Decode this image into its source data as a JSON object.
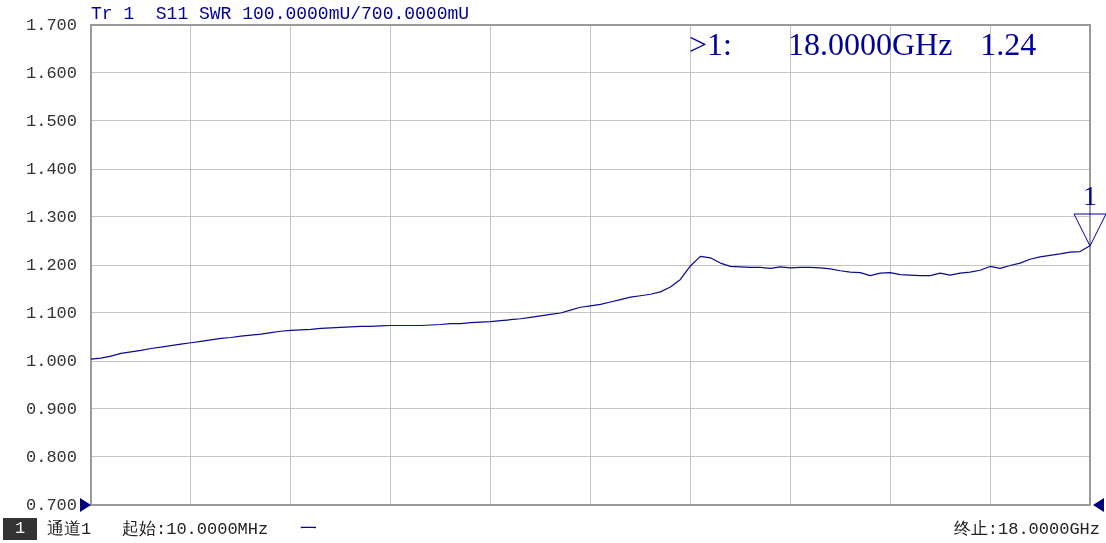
{
  "chart_data": {
    "type": "line",
    "title": "Tr 1  S11 SWR 100.0000mU/700.0000mU",
    "categories": [
      null,
      null,
      null,
      null,
      null,
      null,
      null,
      null,
      null,
      null,
      null,
      null,
      null,
      null,
      null,
      null,
      null,
      null,
      null,
      null,
      null,
      null,
      null,
      null,
      null,
      null,
      null,
      null,
      null,
      null,
      null,
      null,
      null,
      null,
      null,
      null,
      null,
      null,
      null,
      null,
      null,
      null,
      null,
      null,
      null,
      null,
      null,
      null,
      null,
      null,
      null,
      null,
      null,
      null,
      null,
      null,
      null,
      null,
      null,
      null,
      null,
      null,
      null,
      null,
      null,
      null,
      null,
      null,
      null,
      null,
      null,
      null,
      null,
      null,
      null,
      null,
      null,
      null,
      null,
      null,
      null,
      null,
      null,
      null,
      null,
      null,
      null,
      null,
      null,
      null,
      null,
      null,
      null,
      null,
      null,
      null,
      null,
      null,
      null,
      null,
      null
    ],
    "values": [
      1.004,
      1.006,
      1.01,
      1.016,
      1.019,
      1.022,
      1.026,
      1.029,
      1.032,
      1.035,
      1.038,
      1.041,
      1.044,
      1.047,
      1.049,
      1.052,
      1.054,
      1.056,
      1.059,
      1.062,
      1.064,
      1.065,
      1.066,
      1.068,
      1.069,
      1.07,
      1.071,
      1.072,
      1.072,
      1.073,
      1.074,
      1.074,
      1.074,
      1.074,
      1.075,
      1.076,
      1.078,
      1.078,
      1.08,
      1.081,
      1.082,
      1.084,
      1.086,
      1.088,
      1.091,
      1.094,
      1.097,
      1.1,
      1.106,
      1.112,
      1.115,
      1.118,
      1.123,
      1.128,
      1.133,
      1.136,
      1.139,
      1.144,
      1.154,
      1.17,
      1.198,
      1.218,
      1.215,
      1.204,
      1.197,
      1.196,
      1.195,
      1.195,
      1.193,
      1.196,
      1.194,
      1.195,
      1.195,
      1.194,
      1.192,
      1.188,
      1.185,
      1.184,
      1.178,
      1.183,
      1.184,
      1.18,
      1.179,
      1.178,
      1.178,
      1.183,
      1.179,
      1.183,
      1.185,
      1.189,
      1.197,
      1.193,
      1.199,
      1.204,
      1.212,
      1.217,
      1.22,
      1.223,
      1.227,
      1.228,
      1.24
    ],
    "color": "#0a0a96",
    "ylim": [
      0.7,
      1.7
    ],
    "yticks": [
      {
        "value": 0.7,
        "label": "0.700"
      },
      {
        "value": 0.8,
        "label": "0.800"
      },
      {
        "value": 0.9,
        "label": "0.900"
      },
      {
        "value": 1.0,
        "label": "1.000"
      },
      {
        "value": 1.1,
        "label": "1.100"
      },
      {
        "value": 1.2,
        "label": "1.200"
      },
      {
        "value": 1.3,
        "label": "1.300"
      },
      {
        "value": 1.4,
        "label": "1.400"
      },
      {
        "value": 1.5,
        "label": "1.500"
      },
      {
        "value": 1.6,
        "label": "1.600"
      },
      {
        "value": 1.7,
        "label": "1.700"
      }
    ],
    "grid": true,
    "tick_labels": "y",
    "annotations": [
      ">1:    18.0000GHz  1.24",
      {
        "text": "1",
        "y": 1.24
      },
      "1",
      "通道1",
      "起始:10.0000MHz",
      "一",
      "终止:18.0000GHz"
    ]
  }
}
